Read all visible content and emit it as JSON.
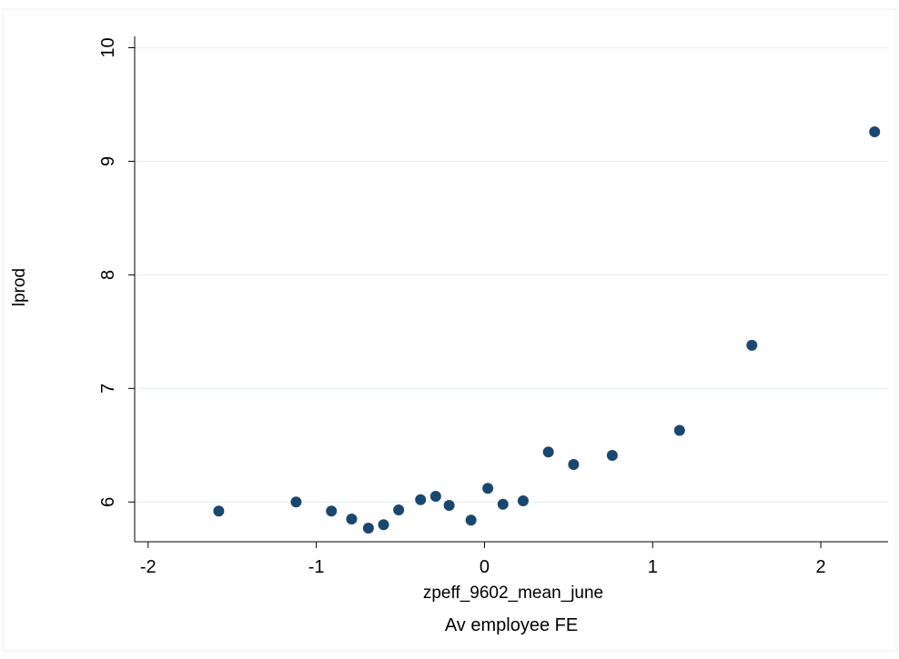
{
  "chart_data": {
    "type": "scatter",
    "title": "",
    "xlabel": "zpeff_9602_mean_june",
    "xnote": "Av employee FE",
    "ylabel": "lprod",
    "xlim": [
      -2.08,
      2.4
    ],
    "ylim": [
      5.65,
      10.1
    ],
    "xticks": [
      -2,
      -1,
      0,
      1,
      2
    ],
    "xtick_labels": [
      "-2",
      "-1",
      "0",
      "1",
      "2"
    ],
    "yticks": [
      6,
      7,
      8,
      9,
      10
    ],
    "ytick_labels": [
      "6",
      "7",
      "8",
      "9",
      "10"
    ],
    "grid": true,
    "marker_color": "#1a476f",
    "grid_color": "#eaf2f3",
    "points": [
      {
        "x": -1.58,
        "y": 5.92
      },
      {
        "x": -1.12,
        "y": 6.0
      },
      {
        "x": -0.91,
        "y": 5.92
      },
      {
        "x": -0.79,
        "y": 5.85
      },
      {
        "x": -0.69,
        "y": 5.77
      },
      {
        "x": -0.6,
        "y": 5.8
      },
      {
        "x": -0.51,
        "y": 5.93
      },
      {
        "x": -0.38,
        "y": 6.02
      },
      {
        "x": -0.29,
        "y": 6.05
      },
      {
        "x": -0.21,
        "y": 5.97
      },
      {
        "x": -0.08,
        "y": 5.84
      },
      {
        "x": 0.02,
        "y": 6.12
      },
      {
        "x": 0.11,
        "y": 5.98
      },
      {
        "x": 0.23,
        "y": 6.01
      },
      {
        "x": 0.38,
        "y": 6.44
      },
      {
        "x": 0.53,
        "y": 6.33
      },
      {
        "x": 0.76,
        "y": 6.41
      },
      {
        "x": 1.16,
        "y": 6.63
      },
      {
        "x": 1.59,
        "y": 7.38
      },
      {
        "x": 2.32,
        "y": 9.26
      }
    ]
  }
}
